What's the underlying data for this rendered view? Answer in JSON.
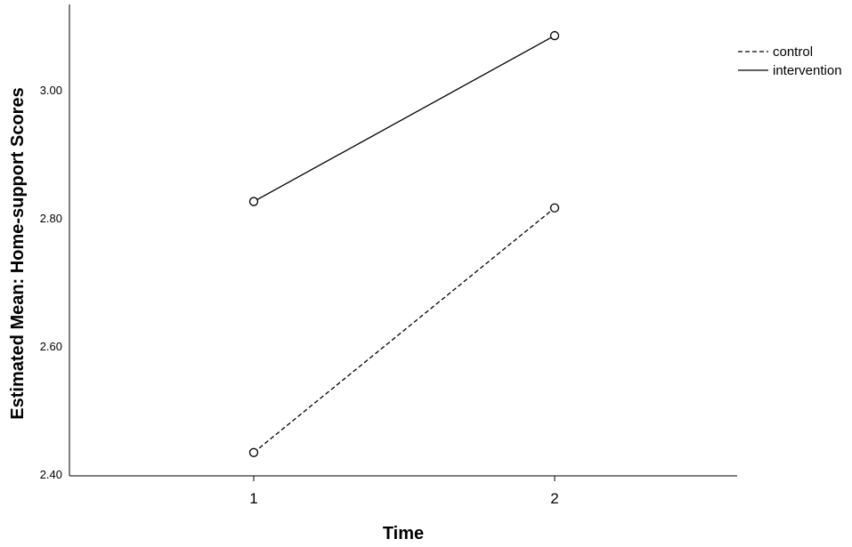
{
  "chart_data": {
    "type": "line",
    "title": "",
    "xlabel": "Time",
    "ylabel": "Estimated Mean: Home-support Scores",
    "categories": [
      "1",
      "2"
    ],
    "yticks": [
      "2.40",
      "2.60",
      "2.80",
      "3.00"
    ],
    "ylim": [
      2.4,
      3.1
    ],
    "grid": false,
    "legend_position": "top-right",
    "series": [
      {
        "name": "control",
        "values": [
          2.435,
          2.817
        ],
        "line_style": "dashed",
        "color": "#000000",
        "marker": "open-circle"
      },
      {
        "name": "intervention",
        "values": [
          2.827,
          3.086
        ],
        "line_style": "solid",
        "color": "#000000",
        "marker": "open-circle"
      }
    ]
  }
}
